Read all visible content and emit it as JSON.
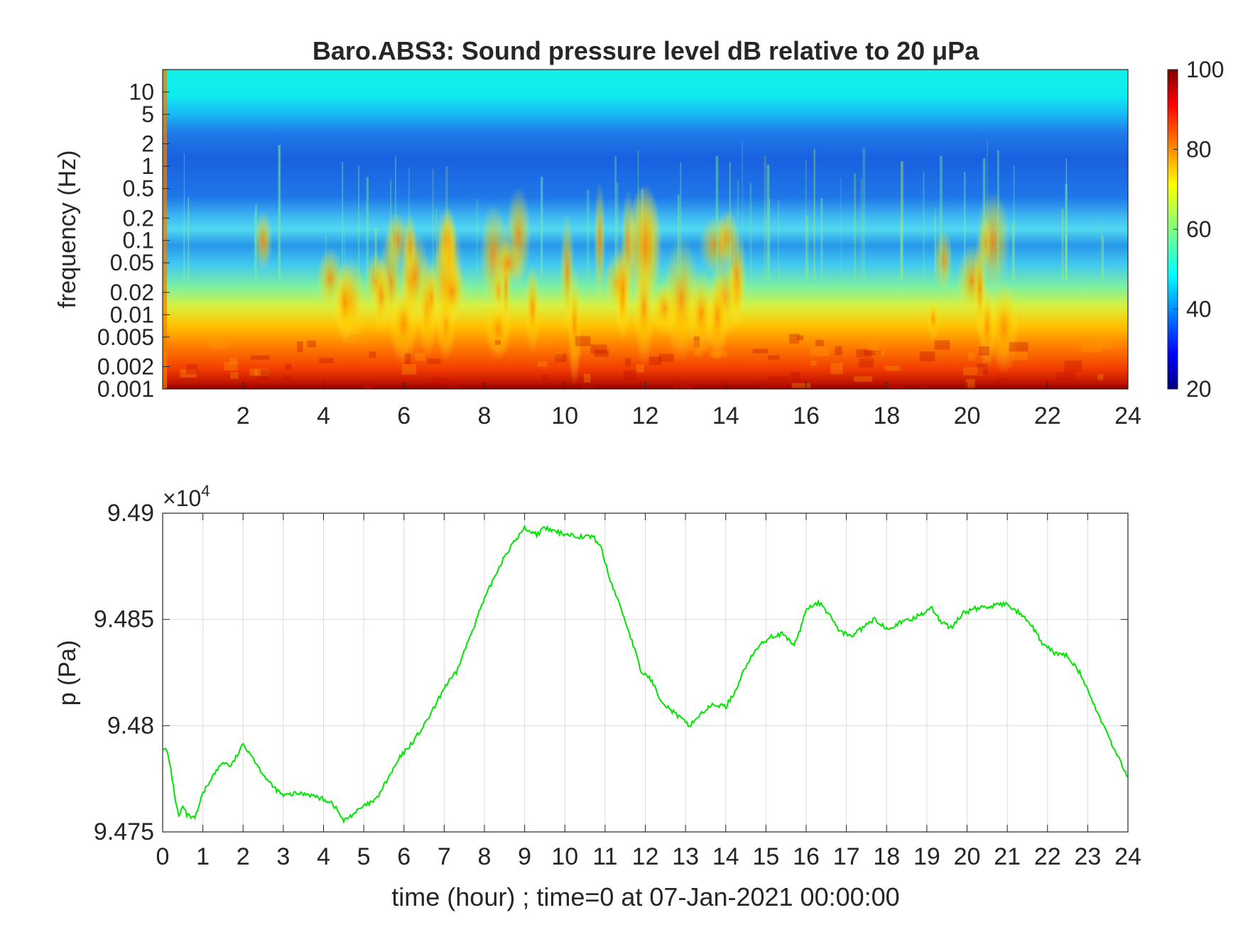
{
  "figure": {
    "title": "Baro.ABS3: Sound pressure level dB relative to 20 μPa"
  },
  "chart_data": [
    {
      "type": "heatmap",
      "title": "Baro.ABS3: Sound pressure level dB relative to 20 μPa",
      "ylabel": "frequency (Hz)",
      "xlabel": "",
      "y_scale": "log",
      "ylim": [
        0.001,
        20
      ],
      "xlim": [
        0,
        24
      ],
      "x_ticks": [
        2,
        4,
        6,
        8,
        10,
        12,
        14,
        16,
        18,
        20,
        22,
        24
      ],
      "x_tick_labels": [
        "2",
        "4",
        "6",
        "8",
        "10",
        "12",
        "14",
        "16",
        "18",
        "20",
        "22",
        "24"
      ],
      "y_ticks": [
        0.001,
        0.002,
        0.005,
        0.01,
        0.02,
        0.05,
        0.1,
        0.2,
        0.5,
        1,
        2,
        5,
        10
      ],
      "y_tick_labels": [
        "0.001",
        "0.002",
        "0.005",
        "0.01",
        "0.02",
        "0.05",
        "0.1",
        "0.2",
        "0.5",
        "1",
        "2",
        "5",
        "10"
      ],
      "colormap": "jet",
      "colorbar": {
        "range": [
          20,
          100
        ],
        "ticks": [
          20,
          40,
          60,
          80,
          100
        ],
        "tick_labels": [
          "20",
          "40",
          "60",
          "80",
          "100"
        ]
      },
      "level_db_by_frequency": [
        {
          "frequency_hz": 10,
          "db": 50
        },
        {
          "frequency_hz": 5,
          "db": 45
        },
        {
          "frequency_hz": 1,
          "db": 38
        },
        {
          "frequency_hz": 0.2,
          "db": 55
        },
        {
          "frequency_hz": 0.1,
          "db": 48
        },
        {
          "frequency_hz": 0.05,
          "db": 55
        },
        {
          "frequency_hz": 0.02,
          "db": 65
        },
        {
          "frequency_hz": 0.01,
          "db": 72
        },
        {
          "frequency_hz": 0.005,
          "db": 80
        },
        {
          "frequency_hz": 0.002,
          "db": 88
        },
        {
          "frequency_hz": 0.001,
          "db": 92
        }
      ],
      "active_periods_hours": [
        [
          2.5,
          7.5
        ],
        [
          8,
          12.5
        ],
        [
          12.5,
          14.5
        ],
        [
          19,
          21
        ]
      ],
      "grid": false
    },
    {
      "type": "line",
      "title": "",
      "xlabel": "time (hour) ; time=0 at 07-Jan-2021 00:00:00",
      "ylabel": "p (Pa)",
      "y_exponent_label": "×10",
      "y_exponent_power": "4",
      "xlim": [
        0,
        24
      ],
      "ylim": [
        94750,
        94900
      ],
      "x_ticks": [
        0,
        1,
        2,
        3,
        4,
        5,
        6,
        7,
        8,
        9,
        10,
        11,
        12,
        13,
        14,
        15,
        16,
        17,
        18,
        19,
        20,
        21,
        22,
        23,
        24
      ],
      "x_tick_labels": [
        "0",
        "1",
        "2",
        "3",
        "4",
        "5",
        "6",
        "7",
        "8",
        "9",
        "10",
        "11",
        "12",
        "13",
        "14",
        "15",
        "16",
        "17",
        "18",
        "19",
        "20",
        "21",
        "22",
        "23",
        "24"
      ],
      "y_ticks": [
        94750,
        94800,
        94850,
        94900
      ],
      "y_tick_labels": [
        "9.475",
        "9.48",
        "9.485",
        "9.49"
      ],
      "grid": true,
      "line_color": "#00e600",
      "series": [
        {
          "x": [
            0,
            0.1,
            0.2,
            0.3,
            0.4,
            0.5,
            0.6,
            0.8,
            1.0,
            1.2,
            1.5,
            1.7,
            1.85,
            2.0,
            2.15,
            2.4,
            2.7,
            3.0,
            3.3,
            3.6,
            3.9,
            4.2,
            4.35,
            4.5,
            4.7,
            5.0,
            5.3,
            5.6,
            5.9,
            6.2,
            6.5,
            6.8,
            7.0,
            7.3,
            7.6,
            7.9,
            8.2,
            8.5,
            8.8,
            9.0,
            9.3,
            9.5,
            9.8,
            10.1,
            10.4,
            10.7,
            10.9,
            11.1,
            11.4,
            11.7,
            11.9,
            12.1,
            12.4,
            12.6,
            12.9,
            13.1,
            13.4,
            13.7,
            14.0,
            14.2,
            14.5,
            14.8,
            15.1,
            15.4,
            15.7,
            15.85,
            16.0,
            16.3,
            16.6,
            16.8,
            17.1,
            17.4,
            17.7,
            18.0,
            18.3,
            18.6,
            18.9,
            19.1,
            19.3,
            19.6,
            19.9,
            20.2,
            20.5,
            20.8,
            21.0,
            21.3,
            21.6,
            21.9,
            22.2,
            22.5,
            22.8,
            23.1,
            23.4,
            23.7,
            24.0
          ],
          "y": [
            94790,
            94788,
            94780,
            94767,
            94757,
            94762,
            94758,
            94756,
            94768,
            94775,
            94783,
            94781,
            94786,
            94791,
            94788,
            94780,
            94772,
            94767,
            94768,
            94768,
            94766,
            94764,
            94760,
            94755,
            94758,
            94762,
            94765,
            94775,
            94785,
            94792,
            94800,
            94810,
            94818,
            94825,
            94840,
            94855,
            94868,
            94880,
            94888,
            94893,
            94890,
            94893,
            94891,
            94890,
            94889,
            94889,
            94884,
            94870,
            94855,
            94838,
            94825,
            94823,
            94812,
            94808,
            94803,
            94800,
            94806,
            94810,
            94809,
            94815,
            94828,
            94837,
            94842,
            94843,
            94838,
            94845,
            94855,
            94858,
            94852,
            94845,
            94842,
            94846,
            94850,
            94846,
            94848,
            94850,
            94853,
            94856,
            94850,
            94846,
            94853,
            94855,
            94856,
            94857,
            94857,
            94853,
            94847,
            94838,
            94834,
            94833,
            94825,
            94812,
            94800,
            94787,
            94776
          ]
        }
      ]
    }
  ]
}
